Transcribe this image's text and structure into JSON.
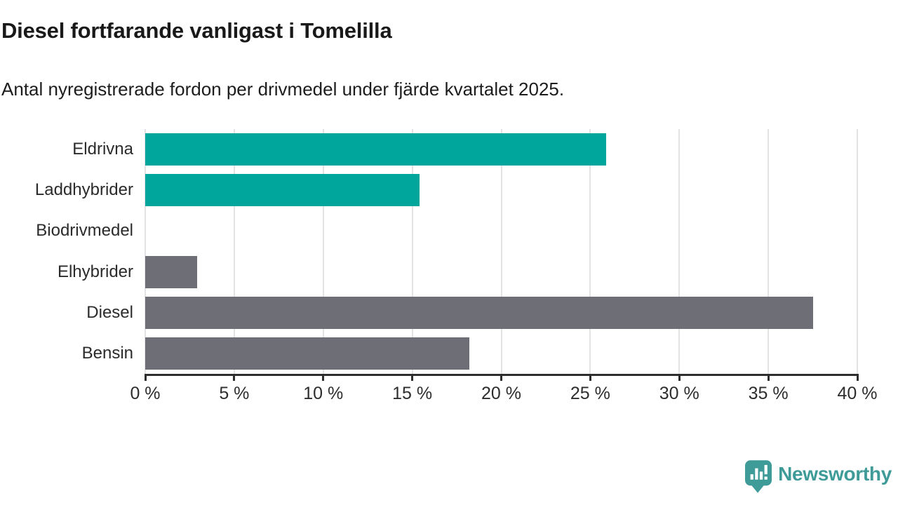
{
  "header": {
    "title": "Diesel fortfarande vanligast i Tomelilla",
    "subtitle": "Antal nyregistrerade fordon per drivmedel under fjärde kvartalet 2025."
  },
  "chart_data": {
    "type": "bar",
    "orientation": "horizontal",
    "categories": [
      "Eldrivna",
      "Laddhybrider",
      "Biodrivmedel",
      "Elhybrider",
      "Diesel",
      "Bensin"
    ],
    "values": [
      25.9,
      15.4,
      0,
      2.9,
      37.5,
      18.2
    ],
    "unit": "%",
    "bar_colors": [
      "#00a59b",
      "#00a59b",
      "#00a59b",
      "#6e6e76",
      "#6e6e76",
      "#6e6e76"
    ],
    "title": "Diesel fortfarande vanligast i Tomelilla",
    "xlabel": "",
    "ylabel": "",
    "xlim": [
      0,
      40
    ],
    "x_ticks": [
      0,
      5,
      10,
      15,
      20,
      25,
      30,
      35,
      40
    ],
    "x_tick_labels": [
      "0 %",
      "5 %",
      "10 %",
      "15 %",
      "20 %",
      "25 %",
      "30 %",
      "35 %",
      "40 %"
    ],
    "grid": "vertical-gridlines-on",
    "legend": "none"
  },
  "colors": {
    "accent_teal": "#00a59b",
    "neutral_gray": "#6e6e76",
    "gridline": "#e3e3e5",
    "axis": "#2e2e2e",
    "logo_teal": "#3e9b98"
  },
  "branding": {
    "logo_text": "Newsworthy",
    "logo_icon": "newsworthy-speech-bubble-chart-icon"
  }
}
